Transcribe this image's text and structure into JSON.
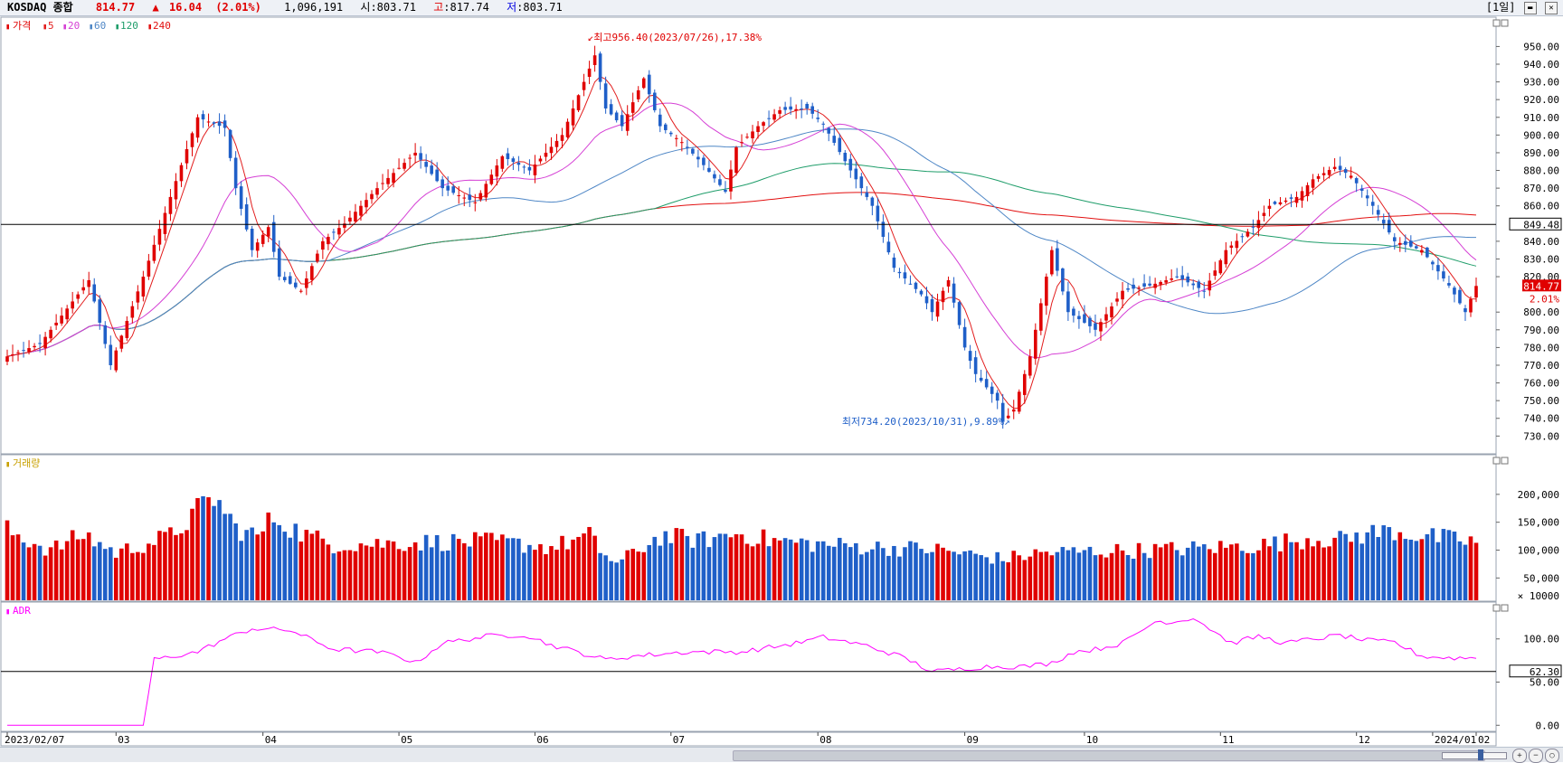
{
  "header": {
    "name": "KOSDAQ 종합",
    "price": "814.77",
    "arrow": "▲",
    "change": "16.04",
    "change_pct": "(2.01%)",
    "volume": "1,096,191",
    "open_label": "시",
    "open": ":803.71",
    "high_label": "고",
    "high": ":817.74",
    "low_label": "저",
    "low": ":803.71",
    "period": "[1일]"
  },
  "legend": {
    "price_label": "가격",
    "ma": [
      "5",
      "20",
      "60",
      "120",
      "240"
    ],
    "volume_label": "거래량",
    "adr_label": "ADR"
  },
  "colors": {
    "up": "#e00000",
    "down": "#1f5fc8",
    "ma5": "#e21e1e",
    "ma20": "#d540d5",
    "ma60": "#4f87c6",
    "ma120": "#1f9d6a",
    "ma240": "#e21010",
    "adr": "#ff00ff"
  },
  "annotations": {
    "high_text": "최고956.40(2023/07/26),17.38%",
    "low_text": "최저734.20(2023/10/31),9.89%",
    "hline_price_tag": "849.48",
    "current_price_tag": "814.77",
    "current_pct_tag": "2.01%",
    "adr_line_tag": "62.30"
  },
  "chart_data": [
    {
      "type": "candlestick",
      "title": "KOSDAQ 종합",
      "x_ticks": [
        "2023/02/07",
        "03",
        "04",
        "05",
        "06",
        "07",
        "08",
        "09",
        "10",
        "11",
        "12",
        "2024/01",
        "02"
      ],
      "ylim": [
        722,
        964
      ],
      "y_ticks": [
        "950.00",
        "940.00",
        "930.00",
        "920.00",
        "910.00",
        "900.00",
        "890.00",
        "880.00",
        "870.00",
        "860.00",
        "840.00",
        "830.00",
        "820.00",
        "800.00",
        "790.00",
        "780.00",
        "770.00",
        "760.00",
        "750.00",
        "740.00",
        "730.00"
      ],
      "horizontal_line": 849.48,
      "series": [
        {
          "name": "5",
          "type": "line"
        },
        {
          "name": "20",
          "type": "line"
        },
        {
          "name": "60",
          "type": "line"
        },
        {
          "name": "120",
          "type": "line"
        },
        {
          "name": "240",
          "type": "line"
        }
      ],
      "close_anchors": [
        [
          0,
          775
        ],
        [
          6,
          782
        ],
        [
          15,
          818
        ],
        [
          19,
          770
        ],
        [
          25,
          820
        ],
        [
          35,
          910
        ],
        [
          40,
          904
        ],
        [
          42,
          870
        ],
        [
          45,
          835
        ],
        [
          48,
          848
        ],
        [
          50,
          820
        ],
        [
          54,
          812
        ],
        [
          58,
          840
        ],
        [
          62,
          850
        ],
        [
          68,
          870
        ],
        [
          75,
          890
        ],
        [
          80,
          870
        ],
        [
          86,
          862
        ],
        [
          91,
          888
        ],
        [
          96,
          880
        ],
        [
          102,
          900
        ],
        [
          108,
          945
        ],
        [
          110,
          915
        ],
        [
          113,
          905
        ],
        [
          117,
          932
        ],
        [
          120,
          905
        ],
        [
          124,
          896
        ],
        [
          128,
          883
        ],
        [
          132,
          868
        ],
        [
          134,
          893
        ],
        [
          138,
          905
        ],
        [
          142,
          914
        ],
        [
          147,
          915
        ],
        [
          150,
          906
        ],
        [
          155,
          880
        ],
        [
          159,
          860
        ],
        [
          163,
          825
        ],
        [
          168,
          810
        ],
        [
          170,
          800
        ],
        [
          173,
          818
        ],
        [
          176,
          780
        ],
        [
          178,
          765
        ],
        [
          182,
          750
        ],
        [
          183,
          738
        ],
        [
          185,
          745
        ],
        [
          188,
          775
        ],
        [
          192,
          835
        ],
        [
          195,
          800
        ],
        [
          200,
          790
        ],
        [
          205,
          812
        ],
        [
          210,
          815
        ],
        [
          215,
          820
        ],
        [
          220,
          812
        ],
        [
          224,
          835
        ],
        [
          229,
          848
        ],
        [
          232,
          860
        ],
        [
          237,
          865
        ],
        [
          240,
          875
        ],
        [
          244,
          882
        ],
        [
          247,
          877
        ],
        [
          251,
          860
        ],
        [
          255,
          840
        ],
        [
          260,
          835
        ],
        [
          265,
          815
        ],
        [
          268,
          800
        ],
        [
          270,
          814.77
        ]
      ],
      "volume_anchors": [
        [
          0,
          135
        ],
        [
          8,
          100
        ],
        [
          14,
          128
        ],
        [
          20,
          95
        ],
        [
          30,
          125
        ],
        [
          35,
          170
        ],
        [
          38,
          195
        ],
        [
          42,
          140
        ],
        [
          46,
          125
        ],
        [
          49,
          160
        ],
        [
          54,
          130
        ],
        [
          60,
          110
        ],
        [
          70,
          112
        ],
        [
          80,
          115
        ],
        [
          90,
          115
        ],
        [
          100,
          105
        ],
        [
          107,
          125
        ],
        [
          109,
          100
        ],
        [
          112,
          75
        ],
        [
          120,
          125
        ],
        [
          128,
          118
        ],
        [
          134,
          130
        ],
        [
          140,
          118
        ],
        [
          150,
          110
        ],
        [
          160,
          105
        ],
        [
          170,
          102
        ],
        [
          183,
          84
        ],
        [
          190,
          95
        ],
        [
          200,
          98
        ],
        [
          210,
          100
        ],
        [
          220,
          104
        ],
        [
          230,
          108
        ],
        [
          240,
          122
        ],
        [
          245,
          118
        ],
        [
          250,
          130
        ],
        [
          255,
          135
        ],
        [
          260,
          125
        ],
        [
          270,
          115
        ]
      ],
      "volume_ylim": [
        10,
        250
      ],
      "volume_y_ticks": [
        "200,000",
        "150,000",
        "100,000",
        "50,000"
      ],
      "volume_unit": "× 10000",
      "adr_anchors": [
        [
          0,
          0
        ],
        [
          25,
          0
        ],
        [
          27,
          76
        ],
        [
          35,
          85
        ],
        [
          40,
          100
        ],
        [
          45,
          112
        ],
        [
          52,
          110
        ],
        [
          60,
          88
        ],
        [
          68,
          85
        ],
        [
          72,
          80
        ],
        [
          75,
          72
        ],
        [
          80,
          95
        ],
        [
          88,
          103
        ],
        [
          95,
          105
        ],
        [
          100,
          93
        ],
        [
          110,
          76
        ],
        [
          115,
          80
        ],
        [
          125,
          85
        ],
        [
          135,
          85
        ],
        [
          145,
          95
        ],
        [
          150,
          102
        ],
        [
          158,
          92
        ],
        [
          165,
          78
        ],
        [
          170,
          62
        ],
        [
          175,
          65
        ],
        [
          180,
          68
        ],
        [
          187,
          68
        ],
        [
          192,
          72
        ],
        [
          196,
          85
        ],
        [
          200,
          88
        ],
        [
          205,
          95
        ],
        [
          211,
          120
        ],
        [
          215,
          120
        ],
        [
          218,
          125
        ],
        [
          222,
          108
        ],
        [
          225,
          95
        ],
        [
          230,
          103
        ],
        [
          235,
          95
        ],
        [
          240,
          100
        ],
        [
          245,
          104
        ],
        [
          250,
          98
        ],
        [
          255,
          96
        ],
        [
          260,
          80
        ],
        [
          265,
          78
        ],
        [
          270,
          78
        ]
      ],
      "adr_ylim": [
        -6,
        128
      ],
      "adr_horizontal_line": 62.3,
      "adr_y_ticks": [
        "100.00",
        "50.00",
        "0.00"
      ]
    }
  ]
}
